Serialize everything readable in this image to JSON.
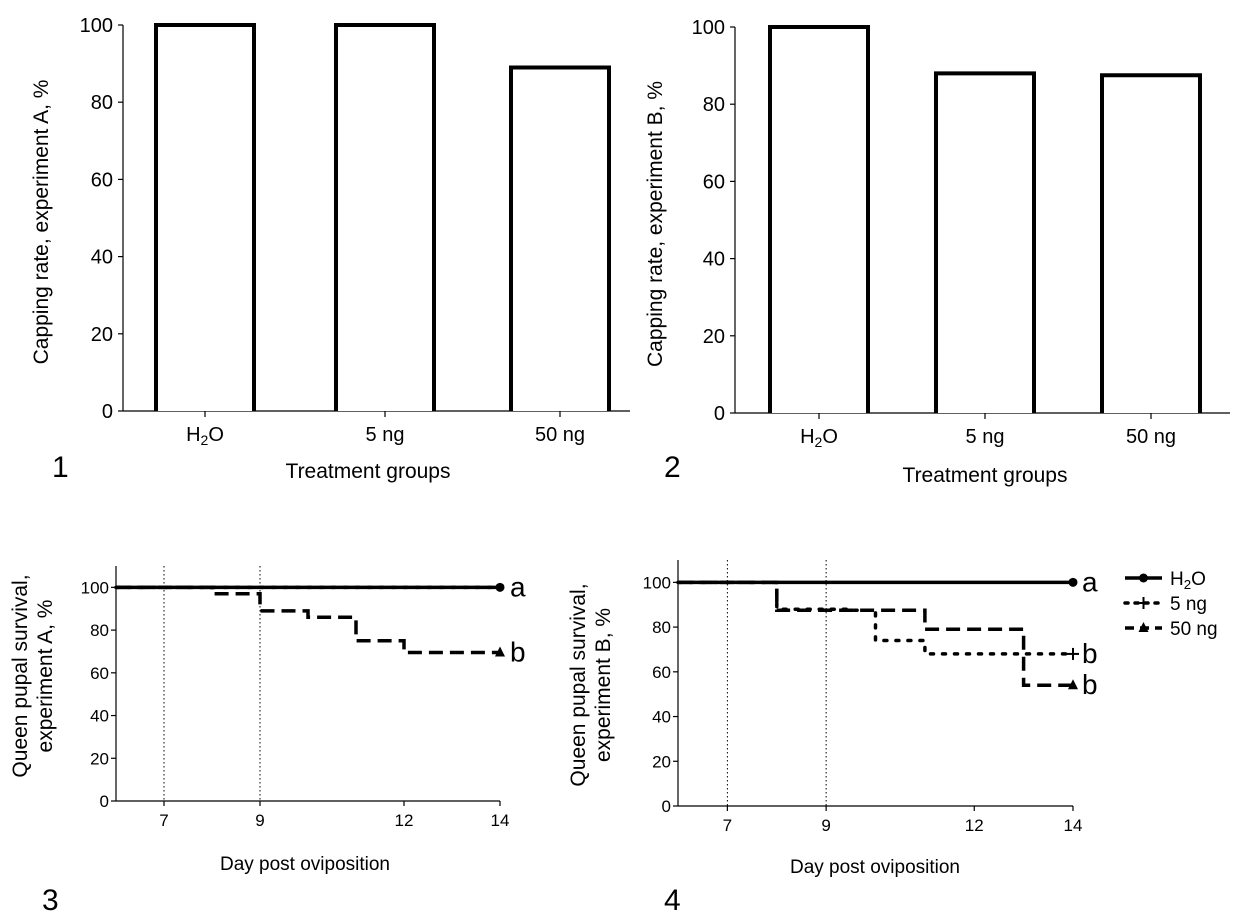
{
  "chart_data": [
    {
      "panel_label": "1",
      "type": "bar",
      "categories": [
        "H₂O",
        "5 ng",
        "50 ng"
      ],
      "values": [
        100,
        100,
        89
      ],
      "xlabel": "Treatment groups",
      "ylabel": "Capping rate, experiment A, %",
      "ylim": [
        0,
        100
      ],
      "yticks": [
        "0",
        "20",
        "40",
        "60",
        "80",
        "100"
      ]
    },
    {
      "panel_label": "2",
      "type": "bar",
      "categories": [
        "H₂O",
        "5 ng",
        "50 ng"
      ],
      "values": [
        100,
        88,
        87.5
      ],
      "xlabel": "Treatment groups",
      "ylabel": "Capping rate, experiment B, %",
      "ylim": [
        0,
        100
      ],
      "yticks": [
        "0",
        "20",
        "40",
        "60",
        "80",
        "100"
      ]
    },
    {
      "panel_label": "3",
      "type": "line",
      "step": true,
      "xlabel": "Day post oviposition",
      "ylabel_lines": [
        "Queen pupal survival,",
        "experiment A, %"
      ],
      "xlim": [
        6,
        14
      ],
      "ylim": [
        0,
        110
      ],
      "xticks": [
        7,
        9,
        12,
        14
      ],
      "yticks": [
        0,
        20,
        40,
        60,
        80,
        100
      ],
      "vlines": [
        7,
        9
      ],
      "series": [
        {
          "name": "H₂O",
          "style": "solid",
          "x": [
            6,
            14
          ],
          "y": [
            100,
            100
          ],
          "end_label": "a"
        },
        {
          "name": "5 ng",
          "style": "dotted",
          "x": [
            6,
            14
          ],
          "y": [
            100,
            100
          ],
          "end_label": ""
        },
        {
          "name": "50 ng",
          "style": "dashed",
          "x": [
            6,
            8,
            9,
            10,
            11,
            12,
            14
          ],
          "y": [
            100,
            97,
            89,
            86,
            75,
            69.5,
            69.5
          ],
          "end_label": "b"
        }
      ]
    },
    {
      "panel_label": "4",
      "type": "line",
      "step": true,
      "xlabel": "Day post oviposition",
      "ylabel_lines": [
        "Queen pupal survival,",
        "experiment B, %"
      ],
      "xlim": [
        6,
        14
      ],
      "ylim": [
        0,
        110
      ],
      "xticks": [
        7,
        9,
        12,
        14
      ],
      "yticks": [
        0,
        20,
        40,
        60,
        80,
        100
      ],
      "vlines": [
        7,
        9
      ],
      "series": [
        {
          "name": "H₂O",
          "style": "solid",
          "x": [
            6,
            14
          ],
          "y": [
            100,
            100
          ],
          "end_label": "a"
        },
        {
          "name": "5 ng",
          "style": "dotted",
          "x": [
            6,
            8,
            9.5,
            10,
            11,
            14
          ],
          "y": [
            100,
            88,
            87.5,
            74,
            68,
            68
          ],
          "end_label": "b"
        },
        {
          "name": "50 ng",
          "style": "dashed",
          "x": [
            6,
            8,
            11,
            13,
            14
          ],
          "y": [
            100,
            87.5,
            79,
            54,
            54
          ],
          "end_label": "b"
        }
      ],
      "legend": {
        "placement": "right",
        "entries": [
          {
            "label": "H₂O",
            "style": "solid",
            "marker": "circle"
          },
          {
            "label": "5 ng",
            "style": "dotted",
            "marker": "plus"
          },
          {
            "label": "50 ng",
            "style": "dashed",
            "marker": "triangle"
          }
        ]
      }
    }
  ]
}
